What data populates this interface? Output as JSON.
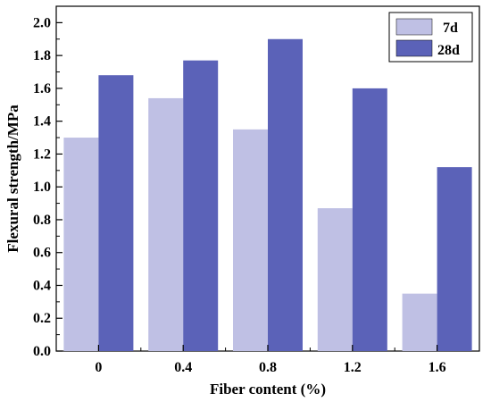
{
  "chart_data": {
    "type": "bar",
    "xlabel": "Fiber content (%)",
    "ylabel": "Flexural strength/MPa",
    "categories": [
      "0",
      "0.4",
      "0.8",
      "1.2",
      "1.6"
    ],
    "ylim": [
      0,
      2.1
    ],
    "yticks": [
      "0.0",
      "0.2",
      "0.4",
      "0.6",
      "0.8",
      "1.0",
      "1.2",
      "1.4",
      "1.6",
      "1.8",
      "2.0"
    ],
    "grid": false,
    "legend_position": "top-right",
    "series": [
      {
        "name": "7d",
        "values": [
          1.3,
          1.54,
          1.35,
          0.87,
          0.35
        ],
        "color": "#bfc0e4"
      },
      {
        "name": "28d",
        "values": [
          1.68,
          1.77,
          1.9,
          1.6,
          1.12
        ],
        "color": "#5b62b8"
      }
    ]
  }
}
